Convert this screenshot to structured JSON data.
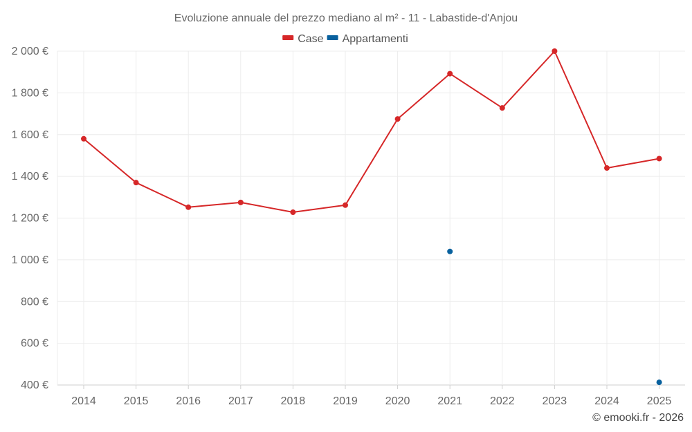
{
  "chart_data": {
    "type": "line",
    "title": "Evoluzione annuale del prezzo mediano al m² - 11 - Labastide-d'Anjou",
    "categories": [
      "2014",
      "2015",
      "2016",
      "2017",
      "2018",
      "2019",
      "2020",
      "2021",
      "2022",
      "2023",
      "2024",
      "2025"
    ],
    "series": [
      {
        "name": "Case",
        "color": "#d62728",
        "values": [
          1580,
          1370,
          1252,
          1275,
          1228,
          1262,
          1675,
          1892,
          1728,
          2000,
          1440,
          1485
        ]
      },
      {
        "name": "Appartamenti",
        "color": "#08619e",
        "values": [
          null,
          null,
          null,
          null,
          null,
          null,
          null,
          1040,
          null,
          null,
          null,
          413
        ]
      }
    ],
    "ylim": [
      400,
      2000
    ],
    "yticks": [
      400,
      600,
      800,
      1000,
      1200,
      1400,
      1600,
      1800,
      2000
    ],
    "ytick_labels": [
      "400 €",
      "600 €",
      "800 €",
      "1 000 €",
      "1 200 €",
      "1 400 €",
      "1 600 €",
      "1 800 €",
      "2 000 €"
    ],
    "xlabel": "",
    "ylabel": "",
    "grid": true,
    "legend_position": "top-center"
  },
  "credit": "© emooki.fr - 2026"
}
